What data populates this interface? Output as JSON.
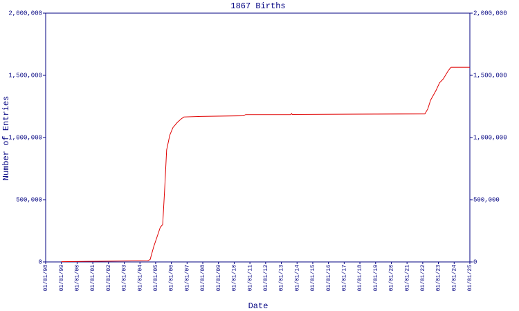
{
  "chart_data": {
    "type": "line",
    "title": "1867 Births",
    "x_label": "Date",
    "y_label": "Number of Entries",
    "color": "#e00000",
    "axis_color": "#000080",
    "x": [
      1999,
      2001,
      2004.5,
      2004.65,
      2004.87,
      2005.14,
      2005.3,
      2005.45,
      2005.58,
      2005.7,
      2005.9,
      2006.1,
      2006.37,
      2006.63,
      2006.8,
      2007.87,
      2010.6,
      2010.73,
      2013.6,
      2013.65,
      2013.7,
      2022.14,
      2022.32,
      2022.5,
      2022.85,
      2023.07,
      2023.3,
      2023.64,
      2023.8,
      2025
    ],
    "values": [
      2000,
      5000,
      10000,
      20000,
      120000,
      220000,
      280000,
      300000,
      600000,
      900000,
      1020000,
      1080000,
      1120000,
      1150000,
      1165000,
      1170000,
      1175000,
      1185000,
      1185000,
      1192000,
      1186000,
      1190000,
      1230000,
      1300000,
      1380000,
      1440000,
      1470000,
      1540000,
      1565000,
      1565000
    ],
    "xlim": [
      1998,
      2025
    ],
    "xticks": [
      {
        "value": 1998,
        "label": "01/01/98"
      },
      {
        "value": 1999,
        "label": "01/01/99"
      },
      {
        "value": 2000,
        "label": "01/01/00"
      },
      {
        "value": 2001,
        "label": "01/01/01"
      },
      {
        "value": 2002,
        "label": "01/01/02"
      },
      {
        "value": 2003,
        "label": "01/01/03"
      },
      {
        "value": 2004,
        "label": "01/01/04"
      },
      {
        "value": 2005,
        "label": "01/01/05"
      },
      {
        "value": 2006,
        "label": "01/01/06"
      },
      {
        "value": 2007,
        "label": "01/01/07"
      },
      {
        "value": 2008,
        "label": "01/01/08"
      },
      {
        "value": 2009,
        "label": "01/01/09"
      },
      {
        "value": 2010,
        "label": "01/01/10"
      },
      {
        "value": 2011,
        "label": "01/01/11"
      },
      {
        "value": 2012,
        "label": "01/01/12"
      },
      {
        "value": 2013,
        "label": "01/01/13"
      },
      {
        "value": 2014,
        "label": "01/01/14"
      },
      {
        "value": 2015,
        "label": "01/01/15"
      },
      {
        "value": 2016,
        "label": "01/01/16"
      },
      {
        "value": 2017,
        "label": "01/01/17"
      },
      {
        "value": 2018,
        "label": "01/01/18"
      },
      {
        "value": 2019,
        "label": "01/01/19"
      },
      {
        "value": 2020,
        "label": "01/01/20"
      },
      {
        "value": 2021,
        "label": "01/01/21"
      },
      {
        "value": 2022,
        "label": "01/01/22"
      },
      {
        "value": 2023,
        "label": "01/01/23"
      },
      {
        "value": 2024,
        "label": "01/01/24"
      },
      {
        "value": 2025,
        "label": "01/01/25"
      }
    ],
    "ylim": [
      0,
      2000000
    ],
    "yticks": [
      0,
      {
        "value": 500000,
        "label": "500,000"
      },
      {
        "value": 1000000,
        "label": "1,000,000"
      },
      {
        "value": 1500000,
        "label": "1,500,000"
      },
      {
        "value": 2000000,
        "label": "2,000,000"
      }
    ],
    "y2lim": [
      0,
      2000000
    ],
    "y2ticks": [
      0,
      {
        "value": 500000,
        "label": "500,000"
      },
      {
        "value": 1000000,
        "label": "1,000,000"
      },
      {
        "value": 1500000,
        "label": "1,500,000"
      },
      {
        "value": 2000000,
        "label": "2,000,000"
      }
    ]
  }
}
